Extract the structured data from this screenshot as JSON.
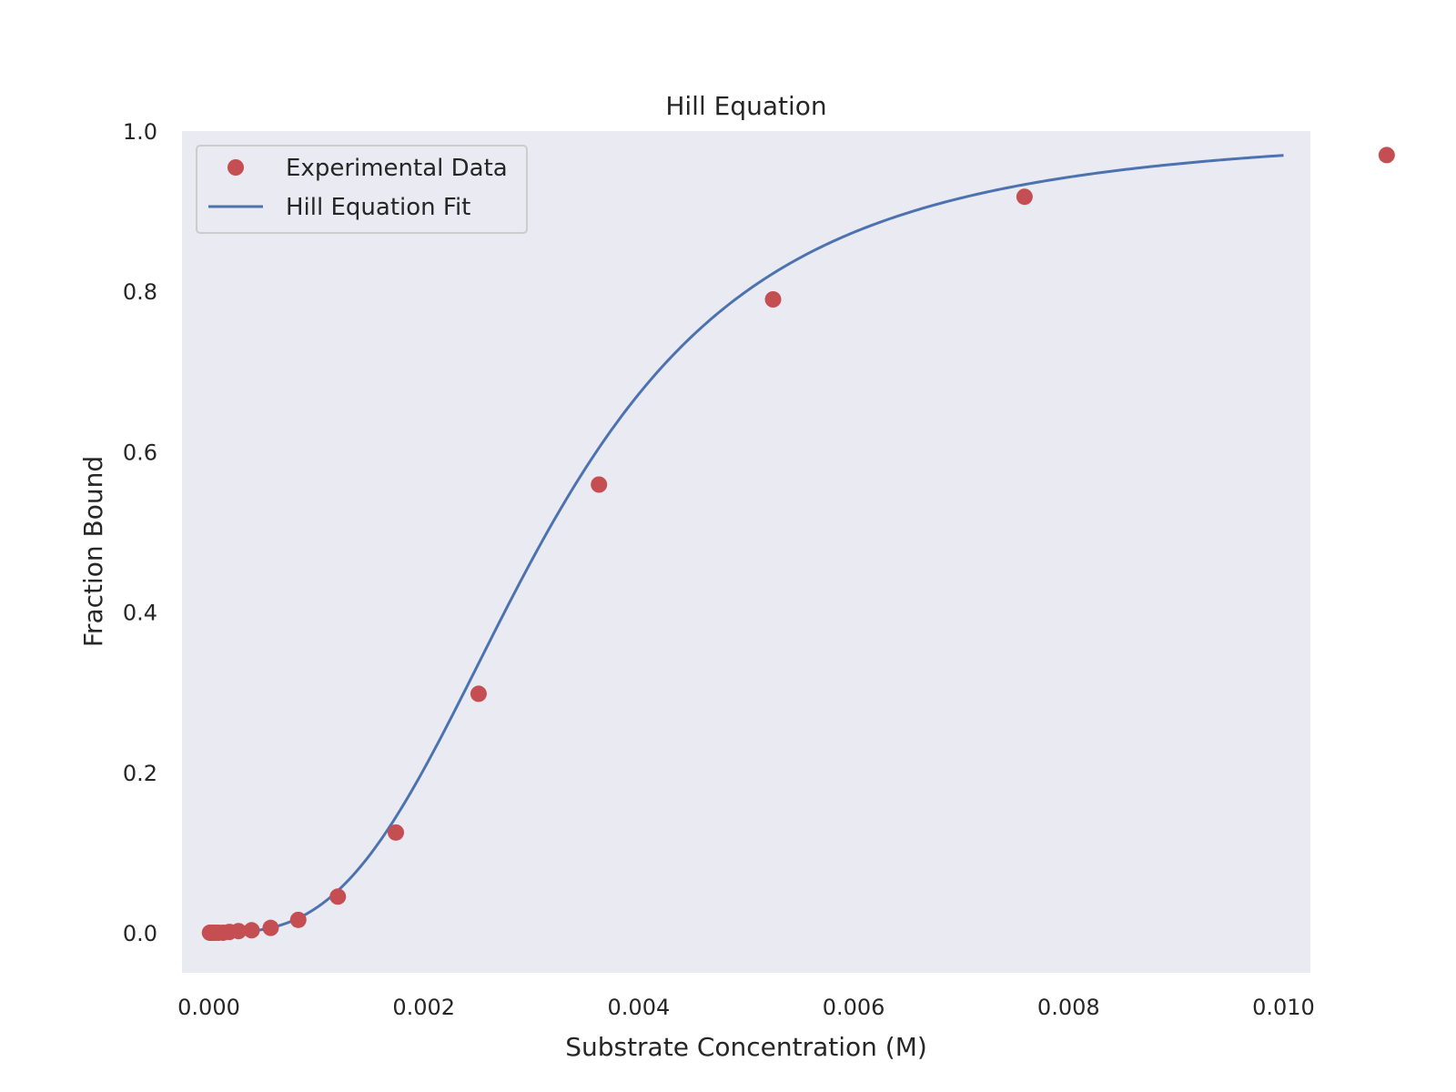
{
  "chart_data": {
    "type": "scatter",
    "title": "Hill Equation",
    "xlabel": "Substrate Concentration (M)",
    "ylabel": "Fraction Bound",
    "xlim": [
      -0.00025,
      0.01025
    ],
    "ylim": [
      -0.05,
      1.0
    ],
    "xticks": [
      0.0,
      0.002,
      0.004,
      0.006,
      0.008,
      0.01
    ],
    "xtick_labels": [
      "0.000",
      "0.002",
      "0.004",
      "0.006",
      "0.008",
      "0.010"
    ],
    "yticks": [
      0.0,
      0.2,
      0.4,
      0.6,
      0.8,
      1.0
    ],
    "ytick_labels": [
      "0.0",
      "0.2",
      "0.4",
      "0.6",
      "0.8",
      "1.0"
    ],
    "grid": false,
    "legend_position": "upper left",
    "background": "#eaeaf2",
    "series": [
      {
        "name": "Experimental Data",
        "kind": "points",
        "color": "#c44e52",
        "x": [
          1e-05,
          1.45e-05,
          2.1e-05,
          3e-05,
          4.4e-05,
          6.3e-05,
          9.1e-05,
          0.000132,
          0.000191,
          0.000276,
          0.000398,
          0.000575,
          0.000832,
          0.0012,
          0.00174,
          0.00251,
          0.00363,
          0.00525,
          0.00759,
          0.01096
        ],
        "y": [
          0.0,
          0.0,
          0.0,
          0.0,
          0.0,
          0.0,
          0.0,
          0.0,
          0.001,
          0.002,
          0.003,
          0.006,
          0.016,
          0.045,
          0.125,
          0.298,
          0.559,
          0.79,
          0.918,
          0.97
        ]
      },
      {
        "name": "Hill Equation Fit",
        "kind": "line",
        "color": "#4c72b0",
        "model": {
          "kd": 0.00315,
          "n": 3.0,
          "x_start": 1e-05,
          "x_end": 0.01
        }
      }
    ]
  }
}
